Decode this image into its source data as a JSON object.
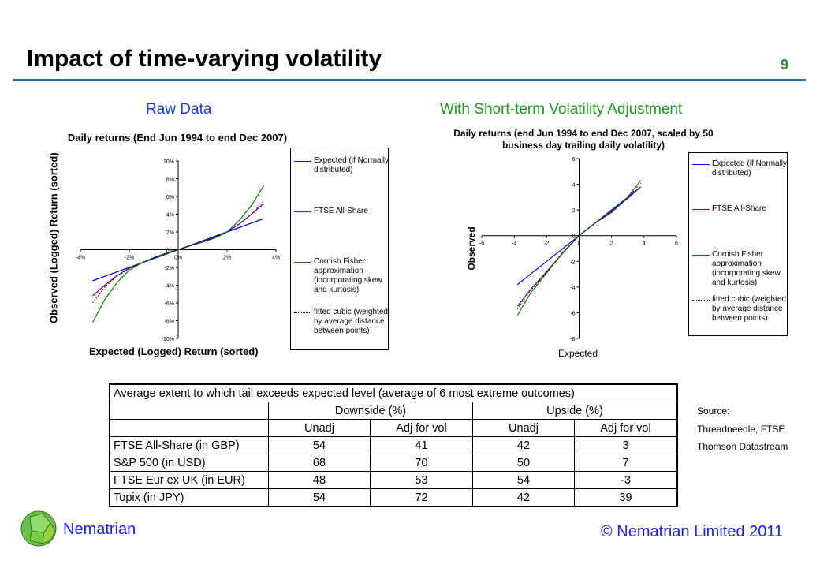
{
  "slide": {
    "title": "Impact of time-varying volatility",
    "page_number": "9",
    "subtitle_left": "Raw Data",
    "subtitle_right": "With Short-term Volatility Adjustment",
    "brand": "Nematrian",
    "copyright": "© Nematrian Limited 2011",
    "source": [
      "Source:",
      "Threadneedle, FTSE",
      "Thomson Datastream"
    ]
  },
  "legend": [
    "Expected (if Normally distributed)",
    "FTSE All-Share",
    "Cornish Fisher approximation (incorporating skew and kurtosis)",
    "fitted cubic (weighted by average distance between points)"
  ],
  "colors": {
    "expected": "#0000ff",
    "ftse": "#800080",
    "cf": "#008000",
    "cubic": "#000000"
  },
  "chart_data": [
    {
      "type": "line",
      "title": "Daily returns (End Jun 1994 to end Dec 2007)",
      "xlabel": "Expected (Logged) Return (sorted)",
      "ylabel": "Observed (Logged) Return (sorted)",
      "xlim": [
        -4,
        4
      ],
      "ylim": [
        -10,
        10
      ],
      "xticks": [
        -4,
        -2,
        0,
        2,
        4
      ],
      "yticks": [
        -10,
        -8,
        -6,
        -4,
        -2,
        0,
        2,
        4,
        6,
        8,
        10
      ],
      "tick_suffix": "%",
      "x": [
        -3.5,
        -3,
        -2.5,
        -2,
        -1.5,
        -1,
        -0.5,
        0,
        0.5,
        1,
        1.5,
        2,
        2.5,
        3,
        3.5
      ],
      "series": [
        {
          "name": "Expected (if Normally distributed)",
          "key": "expected",
          "values": [
            -3.5,
            -3,
            -2.5,
            -2,
            -1.5,
            -1,
            -0.5,
            0,
            0.5,
            1,
            1.5,
            2,
            2.5,
            3,
            3.5
          ]
        },
        {
          "name": "FTSE All-Share",
          "key": "ftse",
          "values": [
            -5.2,
            -4.0,
            -2.9,
            -2.1,
            -1.5,
            -0.9,
            -0.4,
            0,
            0.45,
            0.9,
            1.4,
            2.0,
            2.9,
            4.0,
            5.2
          ]
        },
        {
          "name": "Cornish Fisher approximation",
          "key": "cf",
          "values": [
            -8.2,
            -5.6,
            -3.7,
            -2.3,
            -1.5,
            -0.9,
            -0.45,
            0,
            0.45,
            0.85,
            1.3,
            2.0,
            3.3,
            5.0,
            7.2
          ]
        },
        {
          "name": "fitted cubic",
          "key": "cubic",
          "values": [
            -6.0,
            -4.2,
            -3.0,
            -2.1,
            -1.5,
            -0.9,
            -0.42,
            0,
            0.45,
            0.88,
            1.38,
            2.0,
            2.9,
            4.0,
            5.5
          ]
        }
      ]
    },
    {
      "type": "line",
      "title": "Daily returns (end Jun 1994 to end Dec 2007, scaled by 50 business day trailing daily volatility)",
      "xlabel": "Expected",
      "ylabel": "Observed",
      "xlim": [
        -6,
        6
      ],
      "ylim": [
        -8,
        6
      ],
      "xticks": [
        -6,
        -4,
        -2,
        0,
        2,
        4,
        6
      ],
      "yticks": [
        -8,
        -6,
        -4,
        -2,
        0,
        2,
        4,
        6
      ],
      "tick_suffix": "",
      "x": [
        -3.8,
        -3,
        -2,
        -1,
        0,
        1,
        2,
        3,
        3.8
      ],
      "series": [
        {
          "name": "Expected (if Normally distributed)",
          "key": "expected",
          "values": [
            -3.8,
            -3,
            -2,
            -1,
            0,
            1,
            2,
            3,
            3.8
          ]
        },
        {
          "name": "FTSE All-Share",
          "key": "ftse",
          "values": [
            -5.5,
            -4.2,
            -2.8,
            -1.35,
            0,
            1.0,
            1.9,
            2.9,
            3.8
          ]
        },
        {
          "name": "Cornish Fisher approximation",
          "key": "cf",
          "values": [
            -6.2,
            -4.5,
            -2.9,
            -1.3,
            0,
            1.0,
            1.8,
            3.0,
            4.3
          ]
        },
        {
          "name": "fitted cubic",
          "key": "cubic",
          "values": [
            -5.7,
            -4.3,
            -2.85,
            -1.3,
            0,
            1.0,
            1.85,
            2.95,
            4.1
          ]
        }
      ]
    }
  ],
  "table": {
    "title": "Average extent to which tail exceeds expected level (average of 6 most extreme outcomes)",
    "groups": [
      "Downside (%)",
      "Upside (%)"
    ],
    "cols": [
      "Unadj",
      "Adj for vol",
      "Unadj",
      "Adj for vol"
    ],
    "rows": [
      [
        "FTSE All-Share (in GBP)",
        "54",
        "41",
        "42",
        "3"
      ],
      [
        "S&P 500 (in USD)",
        "68",
        "70",
        "50",
        "7"
      ],
      [
        "FTSE Eur ex UK (in EUR)",
        "48",
        "53",
        "54",
        "-3"
      ],
      [
        "Topix (in JPY)",
        "54",
        "72",
        "42",
        "39"
      ]
    ]
  }
}
